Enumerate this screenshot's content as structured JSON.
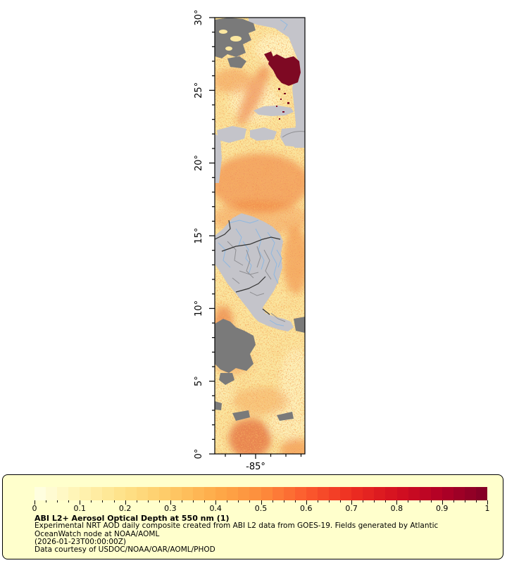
{
  "figure": {
    "kind": "geographic aerosol optical depth map with colorbar legend"
  },
  "map": {
    "lat_tick_labels": [
      "30°",
      "25°",
      "20°",
      "15°",
      "10°",
      "5°",
      "0°"
    ],
    "lon_tick_label": "-85°",
    "lat_range_deg": [
      0,
      30
    ],
    "colors": {
      "field_base": "#FBE7A0",
      "field_pale": "#FEF4C2",
      "field_orange": "#EE6A28",
      "field_red": "#D12A18",
      "max_aod_maroon": "#7E0923",
      "no_data_dark_gray": "#7A7A7A",
      "no_retrieval_light_gray": "#C4C4CA",
      "country_border": "#333333",
      "admin_border": "#8E8E92",
      "river_blue": "#8FB8E0",
      "frame": "#000000"
    }
  },
  "legend": {
    "background": "#FFFFCC",
    "border_color": "#000000",
    "title": "ABI L2+ Aerosol Optical Depth at 550 nm (1)",
    "line1": "Experimental NRT AOD daily composite created from ABI L2 data from GOES-19. Fields generated by Atlantic",
    "line2": "OceanWatch node at NOAA/AOML",
    "line3": "(2026-01-23T00:00:00Z)",
    "line4": "Data courtesy of USDOC/NOAA/OAR/AOML/PHOD",
    "colorbar": {
      "min": 0,
      "max": 1,
      "tick_labels": [
        "0",
        "0.1",
        "0.2",
        "0.3",
        "0.4",
        "0.5",
        "0.6",
        "0.7",
        "0.8",
        "0.9",
        "1"
      ],
      "segments": 40,
      "stops": [
        "#FFFFE5",
        "#FFF3B2",
        "#FEE187",
        "#FEC966",
        "#FEAB49",
        "#FD8D3C",
        "#FC5B2E",
        "#ED2E21",
        "#D41020",
        "#B00026",
        "#800026"
      ]
    }
  },
  "chart_data": {
    "type": "heatmap",
    "title": "ABI L2+ Aerosol Optical Depth at 550 nm (1)",
    "colorbar_range": [
      0,
      1
    ],
    "colorbar_ticks": [
      0,
      0.1,
      0.2,
      0.3,
      0.4,
      0.5,
      0.6,
      0.7,
      0.8,
      0.9,
      1
    ],
    "y_axis_ticks": [
      "30°",
      "25°",
      "20°",
      "15°",
      "10°",
      "5°",
      "0°"
    ],
    "x_axis_ticks": [
      "-85°"
    ],
    "legend_position": "bottom"
  }
}
